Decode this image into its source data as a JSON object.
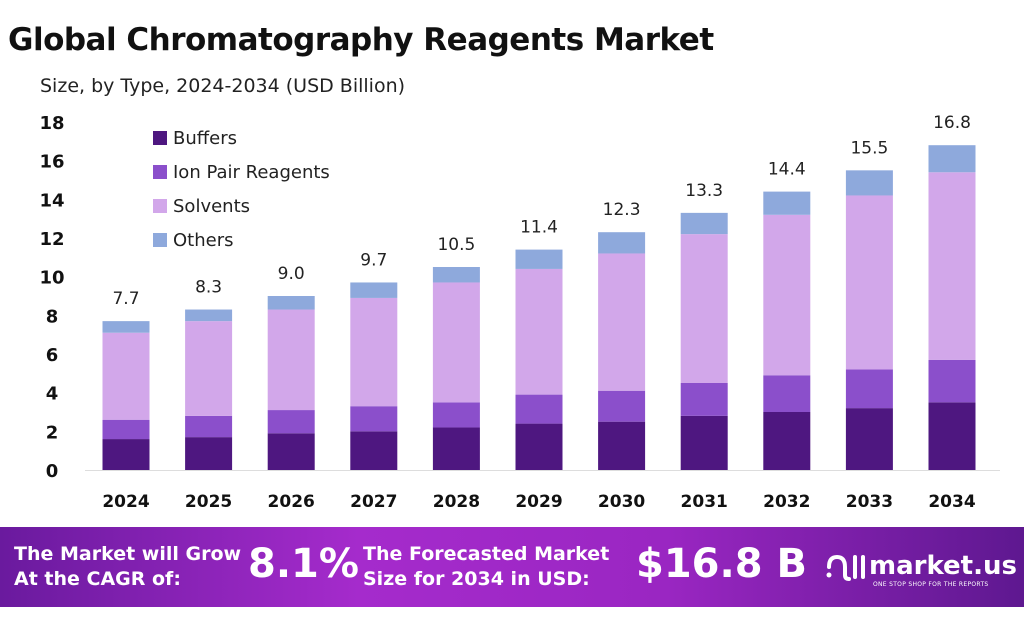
{
  "chart_data": {
    "type": "bar",
    "stacked": true,
    "title": "Global Chromatography Reagents Market",
    "subtitle": "Size, by Type, 2024-2034 (USD Billion)",
    "categories": [
      "2024",
      "2025",
      "2026",
      "2027",
      "2028",
      "2029",
      "2030",
      "2031",
      "2032",
      "2033",
      "2034"
    ],
    "series": [
      {
        "name": "Buffers",
        "color": "#4e1780",
        "values": [
          1.6,
          1.7,
          1.9,
          2.0,
          2.2,
          2.4,
          2.5,
          2.8,
          3.0,
          3.2,
          3.5
        ]
      },
      {
        "name": "Ion Pair Reagents",
        "color": "#8b4fcb",
        "values": [
          1.0,
          1.1,
          1.2,
          1.3,
          1.3,
          1.5,
          1.6,
          1.7,
          1.9,
          2.0,
          2.2
        ]
      },
      {
        "name": "Solvents",
        "color": "#d2a7ea",
        "values": [
          4.5,
          4.9,
          5.2,
          5.6,
          6.2,
          6.5,
          7.1,
          7.7,
          8.3,
          9.0,
          9.7
        ]
      },
      {
        "name": "Others",
        "color": "#8ea9dc",
        "values": [
          0.6,
          0.6,
          0.7,
          0.8,
          0.8,
          1.0,
          1.1,
          1.1,
          1.2,
          1.3,
          1.4
        ]
      }
    ],
    "totals_labels": [
      "7.7",
      "8.3",
      "9.0",
      "9.7",
      "10.5",
      "11.4",
      "12.3",
      "13.3",
      "14.4",
      "15.5",
      "16.8"
    ],
    "yticks": [
      0,
      2,
      4,
      6,
      8,
      10,
      12,
      14,
      16,
      18
    ],
    "ylim": [
      0,
      18
    ],
    "xlabel": "",
    "ylabel": "",
    "grid": false,
    "legend": "top-left"
  },
  "banner": {
    "cagr_text_1": "The Market will Grow",
    "cagr_text_2": "At the CAGR of:",
    "cagr_value": "8.1%",
    "forecast_text_1": "The Forecasted Market",
    "forecast_text_2": "Size for 2034 in USD:",
    "forecast_value": "$16.8 B",
    "logo_text": "market.us",
    "logo_tagline": "ONE STOP SHOP FOR THE REPORTS"
  }
}
